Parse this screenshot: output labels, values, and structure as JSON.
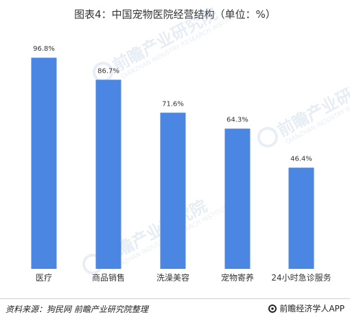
{
  "title": "图表4：中国宠物医院经营结构（单位：%）",
  "chart_data": {
    "type": "bar",
    "title": "图表4：中国宠物医院经营结构（单位：%）",
    "categories": [
      "医疗",
      "商品销售",
      "洗澡美容",
      "宠物寄养",
      "24小时急诊服务"
    ],
    "values": [
      96.8,
      86.7,
      71.6,
      64.3,
      46.4
    ],
    "value_labels": [
      "96.8%",
      "86.7%",
      "71.6%",
      "64.3%",
      "46.4%"
    ],
    "xlabel": "",
    "ylabel": "",
    "ylim": [
      0,
      100
    ],
    "grid": false,
    "bar_color": "#4A86E2"
  },
  "watermark": {
    "main": "前瞻产业研究院",
    "sub": "QIANZHAN INDUSTRY RESEARCH INSTITUTE"
  },
  "footer": {
    "source": "资料来源：狗民网 前瞻产业研究院整理",
    "brand": "前瞻经济学人APP"
  }
}
